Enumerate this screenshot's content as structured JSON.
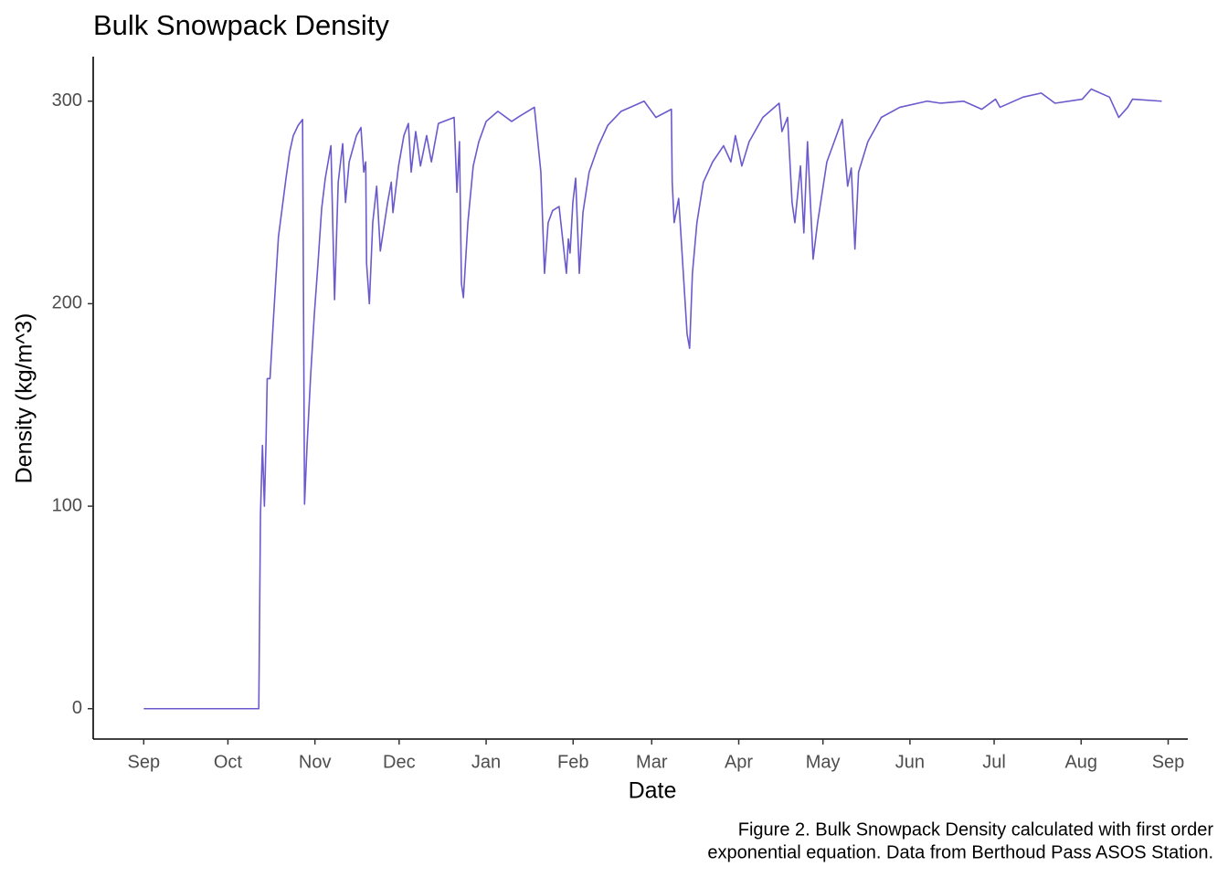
{
  "chart_data": {
    "type": "line",
    "title": "Bulk Snowpack Density",
    "x_label": "Date",
    "y_label": "Density (kg/m^3)",
    "caption": [
      "Figure 2. Bulk Snowpack Density calculated with first order",
      "exponential equation. Data from Berthoud Pass ASOS Station."
    ],
    "color": "#6a5acd",
    "x": [
      0,
      41,
      41.6,
      42.3,
      43,
      43.6,
      44,
      45,
      46.2,
      47.2,
      48,
      49.4,
      50.7,
      52,
      53.3,
      55,
      56.6,
      57.3,
      58.2,
      59.5,
      60.8,
      62.1,
      63.4,
      64.7,
      66.7,
      68,
      69.3,
      70.9,
      71.9,
      73.2,
      75.8,
      77.4,
      78.4,
      79.1,
      79.4,
      80.4,
      81.6,
      83,
      84.3,
      86.9,
      88.2,
      88.8,
      90.8,
      92.7,
      94.3,
      95.3,
      96.9,
      98.6,
      100.8,
      102.5,
      105,
      110.6,
      111.6,
      112.5,
      113.2,
      113.9,
      115.5,
      117.4,
      119.4,
      122,
      126.2,
      131.1,
      134.4,
      139.2,
      141.5,
      142.8,
      144.1,
      145.7,
      148,
      150.6,
      151.3,
      151.9,
      152.9,
      153.9,
      155.2,
      156.5,
      158.7,
      162,
      165.3,
      170.1,
      178.3,
      182.5,
      188,
      188.3,
      189,
      190.6,
      193.6,
      194.5,
      195.5,
      197.1,
      199.4,
      202.7,
      206.6,
      209.2,
      210.8,
      213.1,
      215.7,
      220.6,
      226.4,
      227.4,
      229.4,
      231,
      232,
      234,
      235.2,
      236.5,
      238.5,
      240.1,
      243.4,
      248.9,
      250.8,
      252.1,
      253.4,
      254.7,
      258,
      262.8,
      269.4,
      279.1,
      284,
      292.1,
      298.6,
      303.5,
      305.1,
      313.3,
      319.8,
      324.7,
      334.4,
      337.6,
      344.1,
      347.4,
      350.6,
      352.3,
      362.7
    ],
    "values": [
      0,
      0,
      96,
      130,
      100,
      133,
      163,
      163,
      192,
      215,
      233,
      248,
      262,
      275,
      283,
      288,
      291,
      101,
      130,
      165,
      195,
      220,
      247,
      262,
      278,
      202,
      260,
      279,
      250,
      270,
      283,
      287,
      265,
      270,
      220,
      200,
      240,
      258,
      226,
      250,
      260,
      245,
      268,
      283,
      289,
      265,
      285,
      268,
      283,
      270,
      289,
      292,
      255,
      280,
      210,
      203,
      240,
      268,
      280,
      290,
      295,
      290,
      293,
      297,
      265,
      215,
      240,
      246,
      248,
      215,
      232,
      225,
      250,
      262,
      215,
      245,
      265,
      278,
      288,
      295,
      300,
      292,
      296,
      260,
      240,
      252,
      185,
      178,
      215,
      240,
      260,
      270,
      278,
      270,
      283,
      268,
      280,
      292,
      299,
      285,
      292,
      250,
      240,
      268,
      235,
      280,
      222,
      240,
      270,
      291,
      258,
      267,
      227,
      265,
      280,
      292,
      297,
      300,
      299,
      300,
      296,
      301,
      297,
      302,
      304,
      299,
      301,
      306,
      302,
      292,
      297,
      301,
      300
    ],
    "xlim": [
      -18,
      372
    ],
    "xticks": [
      {
        "value": 0,
        "label": "Sep"
      },
      {
        "value": 30,
        "label": "Oct"
      },
      {
        "value": 61,
        "label": "Nov"
      },
      {
        "value": 91,
        "label": "Dec"
      },
      {
        "value": 122,
        "label": "Jan"
      },
      {
        "value": 153,
        "label": "Feb"
      },
      {
        "value": 181,
        "label": "Mar"
      },
      {
        "value": 212,
        "label": "Apr"
      },
      {
        "value": 242,
        "label": "May"
      },
      {
        "value": 273,
        "label": "Jun"
      },
      {
        "value": 303,
        "label": "Jul"
      },
      {
        "value": 334,
        "label": "Aug"
      },
      {
        "value": 365,
        "label": "Sep"
      }
    ],
    "ylim": [
      -15,
      322
    ],
    "yticks": [
      0,
      100,
      200,
      300
    ],
    "grid": false
  }
}
